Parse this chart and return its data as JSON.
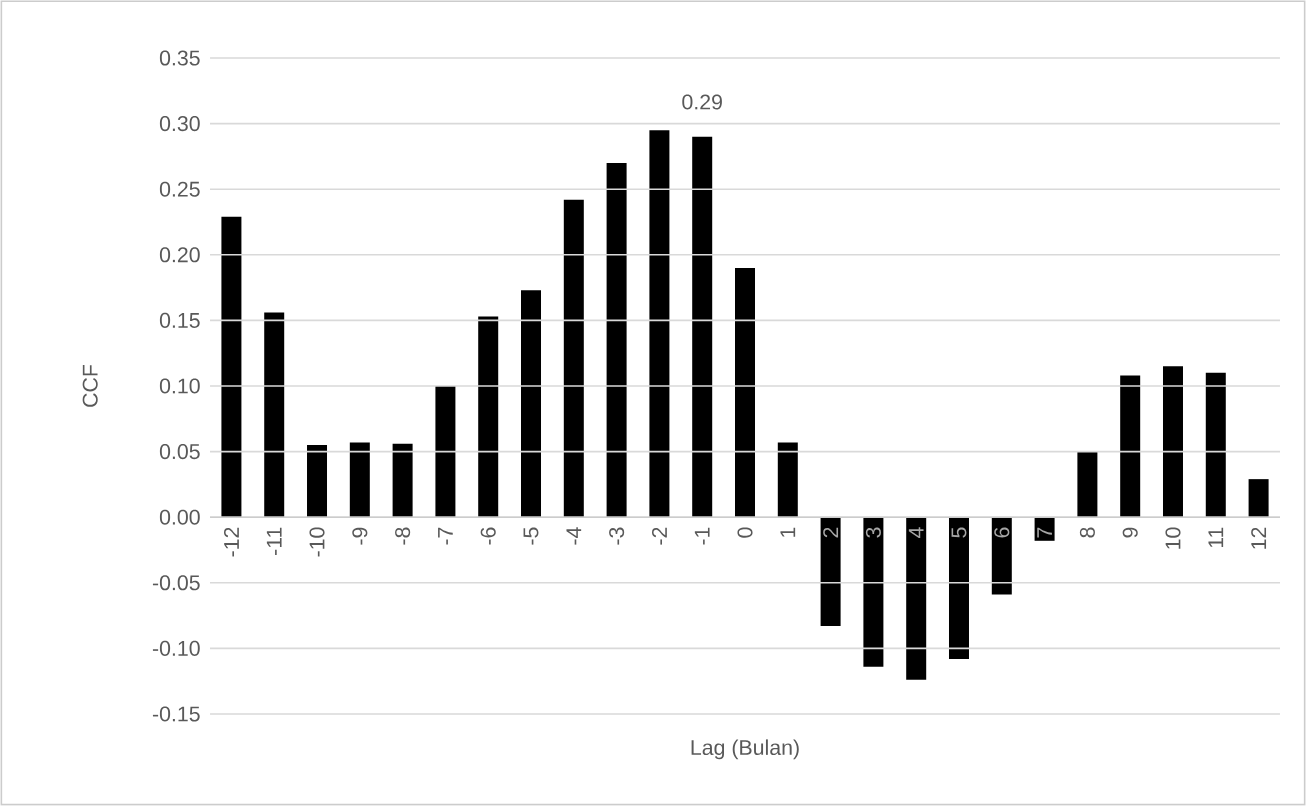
{
  "chart_data": {
    "type": "bar",
    "xlabel": "Lag (Bulan)",
    "ylabel": "CCF",
    "categories": [
      "-12",
      "-11",
      "-10",
      "-9",
      "-8",
      "-7",
      "-6",
      "-5",
      "-4",
      "-3",
      "-2",
      "-1",
      "0",
      "1",
      "2",
      "3",
      "4",
      "5",
      "6",
      "7",
      "8",
      "9",
      "10",
      "11",
      "12"
    ],
    "values": [
      0.229,
      0.156,
      0.055,
      0.057,
      0.056,
      0.1,
      0.153,
      0.173,
      0.242,
      0.27,
      0.295,
      0.29,
      0.19,
      0.057,
      -0.083,
      -0.114,
      -0.124,
      -0.108,
      -0.059,
      -0.018,
      0.05,
      0.108,
      0.115,
      0.11,
      0.029
    ],
    "value_labels": [
      null,
      null,
      null,
      null,
      null,
      null,
      null,
      null,
      null,
      null,
      null,
      "0.29",
      null,
      null,
      null,
      null,
      null,
      null,
      null,
      null,
      null,
      null,
      null,
      null,
      null
    ],
    "color": "#000000",
    "ylim": [
      -0.15,
      0.35
    ],
    "yticks": [
      -0.15,
      {
        "value": -0.1,
        "label": "-0.10"
      },
      -0.05,
      {
        "value": 0,
        "label": "0.00"
      },
      0.05,
      {
        "value": 0.1,
        "label": "0.10"
      },
      0.15,
      {
        "value": 0.2,
        "label": "0.20"
      },
      0.25,
      {
        "value": 0.3,
        "label": "0.30"
      },
      0.35
    ],
    "grid": "y"
  }
}
